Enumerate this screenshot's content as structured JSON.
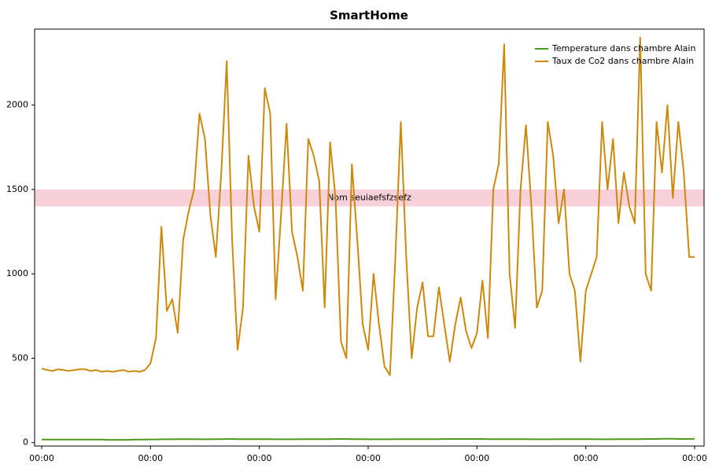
{
  "chart_data": {
    "type": "line",
    "title": "SmartHome",
    "categories": [
      "00:00",
      null,
      null,
      null,
      null,
      null,
      null,
      null,
      null,
      null,
      null,
      null,
      null,
      null,
      null,
      null,
      null,
      null,
      null,
      null,
      "00:00",
      null,
      null,
      null,
      null,
      null,
      null,
      null,
      null,
      null,
      null,
      null,
      null,
      null,
      null,
      null,
      null,
      null,
      null,
      null,
      "00:00",
      null,
      null,
      null,
      null,
      null,
      null,
      null,
      null,
      null,
      null,
      null,
      null,
      null,
      null,
      null,
      null,
      null,
      null,
      null,
      "00:00",
      null,
      null,
      null,
      null,
      null,
      null,
      null,
      null,
      null,
      null,
      null,
      null,
      null,
      null,
      null,
      null,
      null,
      null,
      null,
      "00:00",
      null,
      null,
      null,
      null,
      null,
      null,
      null,
      null,
      null,
      null,
      null,
      null,
      null,
      null,
      null,
      null,
      null,
      null,
      null,
      "00:00",
      null,
      null,
      null,
      null,
      null,
      null,
      null,
      null,
      null,
      null,
      null,
      null,
      null,
      null,
      null,
      null,
      null,
      null,
      null,
      "00:00"
    ],
    "series": [
      {
        "name": "Temperature dans chambre Alain",
        "color": "#4f9a1c",
        "values": [
          18,
          18,
          18,
          18,
          18,
          18,
          18,
          18,
          18,
          18,
          18,
          18,
          17,
          17,
          17,
          17,
          17,
          18,
          18,
          18,
          19,
          19,
          20,
          20,
          20,
          21,
          21,
          21,
          21,
          20,
          20,
          20,
          21,
          21,
          22,
          22,
          21,
          21,
          21,
          21,
          21,
          21,
          21,
          20,
          20,
          20,
          20,
          20,
          21,
          21,
          21,
          21,
          21,
          21,
          22,
          22,
          22,
          21,
          21,
          21,
          20,
          20,
          20,
          20,
          20,
          21,
          21,
          21,
          21,
          21,
          21,
          21,
          21,
          21,
          22,
          22,
          22,
          22,
          22,
          22,
          22,
          22,
          21,
          21,
          21,
          21,
          21,
          21,
          21,
          21,
          20,
          20,
          20,
          20,
          20,
          21,
          21,
          21,
          21,
          21,
          21,
          21,
          20,
          20,
          20,
          20,
          21,
          21,
          21,
          21,
          21,
          22,
          22,
          22,
          23,
          23,
          23,
          22,
          22,
          22,
          23
        ]
      },
      {
        "name": "Taux de Co2 dans chambre Alain",
        "color": "#cc8a0c",
        "values": [
          440,
          430,
          425,
          435,
          430,
          425,
          430,
          435,
          435,
          425,
          430,
          420,
          425,
          420,
          425,
          430,
          420,
          425,
          420,
          430,
          470,
          620,
          1280,
          780,
          850,
          650,
          1200,
          1370,
          1500,
          1950,
          1800,
          1350,
          1100,
          1600,
          2260,
          1200,
          550,
          800,
          1700,
          1400,
          1250,
          2100,
          1950,
          850,
          1350,
          1890,
          1250,
          1100,
          900,
          1800,
          1700,
          1550,
          800,
          1780,
          1450,
          600,
          500,
          1650,
          1200,
          700,
          550,
          1000,
          700,
          450,
          400,
          1100,
          1900,
          1100,
          500,
          800,
          950,
          630,
          630,
          920,
          700,
          480,
          700,
          860,
          660,
          560,
          650,
          960,
          620,
          1500,
          1650,
          2360,
          1000,
          680,
          1500,
          1880,
          1400,
          800,
          900,
          1900,
          1700,
          1300,
          1500,
          1000,
          900,
          480,
          900,
          1000,
          1100,
          1900,
          1500,
          1800,
          1300,
          1600,
          1400,
          1300,
          2400,
          1000,
          900,
          1900,
          1600,
          2000,
          1450,
          1900,
          1600,
          1100,
          1100
        ]
      }
    ],
    "bands": [
      {
        "from": 1400,
        "to": 1500,
        "label": "Nom seuiaefsfzsefz",
        "color": "#f8d0da"
      }
    ],
    "ylim": [
      -20,
      2450
    ],
    "yticks": [
      0,
      500,
      1000,
      1500,
      2000
    ],
    "legend": "top-right"
  }
}
